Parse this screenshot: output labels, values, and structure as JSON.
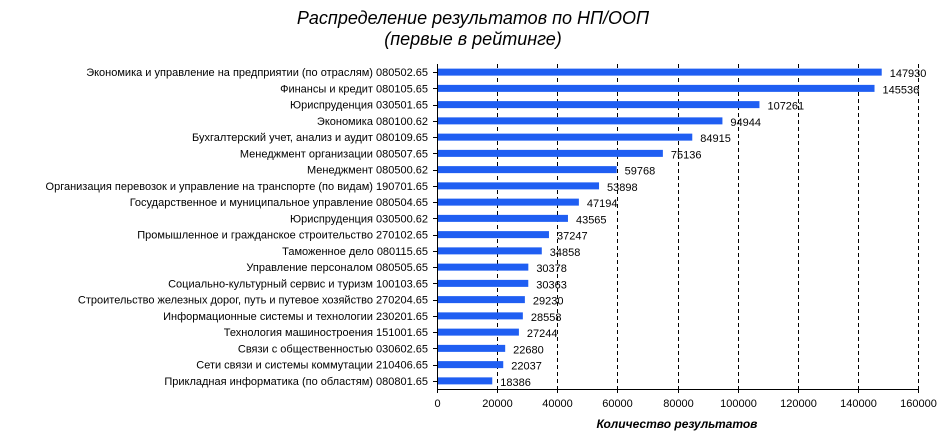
{
  "chart_data": {
    "type": "bar",
    "orientation": "horizontal",
    "title_line1": "Распределение результатов по НП/ООП",
    "title_line2": "(первые в рейтинге)",
    "xlabel": "Количество результатов",
    "ylabel": "",
    "xlim": [
      0,
      160000
    ],
    "xticks": [
      "0",
      "20000",
      "40000",
      "60000",
      "80000",
      "100000",
      "120000",
      "140000",
      "160000"
    ],
    "grid": "vertical dashed",
    "bar_color": "#1f5ef2",
    "categories": [
      "Экономика и управление на предприятии (по отраслям) 080502.65",
      "Финансы и кредит 080105.65",
      "Юриспруденция 030501.65",
      "Экономика 080100.62",
      "Бухгалтерский учет, анализ и аудит 080109.65",
      "Менеджмент организации 080507.65",
      "Менеджмент 080500.62",
      "Организация перевозок и управление на транспорте (по видам) 190701.65",
      "Государственное и муниципальное управление 080504.65",
      "Юриспруденция 030500.62",
      "Промышленное и гражданское строительство 270102.65",
      "Таможенное дело 080115.65",
      "Управление персоналом 080505.65",
      "Социально-культурный сервис и туризм 100103.65",
      "Строительство железных дорог, путь и путевое хозяйство 270204.65",
      "Информационные системы и технологии 230201.65",
      "Технология машиностроения 151001.65",
      "Связи с общественностью 030602.65",
      "Сети связи и системы коммутации 210406.65",
      "Прикладная информатика (по областям) 080801.65"
    ],
    "values": [
      147930,
      145536,
      107261,
      94944,
      84915,
      75136,
      59768,
      53898,
      47194,
      43565,
      37247,
      34858,
      30378,
      30363,
      29230,
      28558,
      27244,
      22680,
      22037,
      18386
    ]
  }
}
